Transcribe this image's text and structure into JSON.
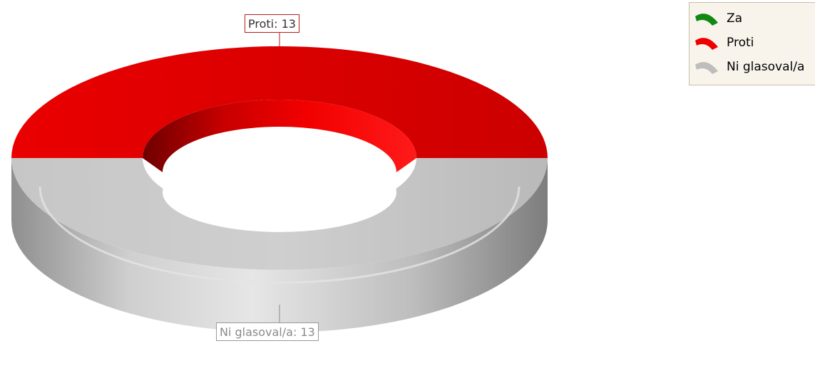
{
  "chart_data": {
    "type": "pie",
    "style": "3d-donut",
    "slices": [
      {
        "label": "Za",
        "value": 0,
        "color": "#118811"
      },
      {
        "label": "Proti",
        "value": 13,
        "color": "#ee0000"
      },
      {
        "label": "Ni glasoval/a",
        "value": 13,
        "color": "#c0c0c0"
      }
    ],
    "data_labels": {
      "proti": "Proti: 13",
      "ni_glasoval": "Ni glasoval/a: 13"
    },
    "legend": {
      "placement": "top-right",
      "items": [
        {
          "label": "Za",
          "icon": "green-arc-icon",
          "color": "#118811"
        },
        {
          "label": "Proti",
          "icon": "red-arc-icon",
          "color": "#ee0000"
        },
        {
          "label": "Ni glasoval/a",
          "icon": "gray-arc-icon",
          "color": "#bdbdbd"
        }
      ]
    }
  }
}
